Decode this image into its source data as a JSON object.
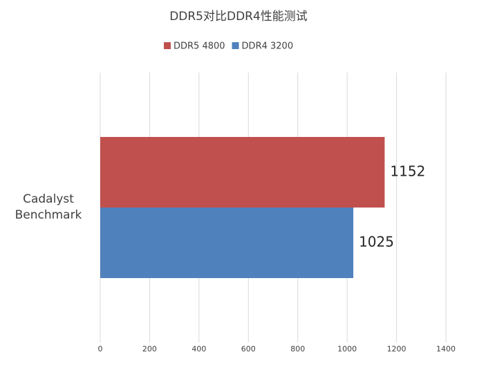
{
  "chart_data": {
    "type": "bar",
    "orientation": "horizontal",
    "title": "DDR5对比DDR4性能测试",
    "categories": [
      "Cadalyst Benchmark"
    ],
    "series": [
      {
        "name": "DDR5 4800",
        "color": "#c0504d",
        "values": [
          1152
        ]
      },
      {
        "name": "DDR4 3200",
        "color": "#4f81bd",
        "values": [
          1025
        ]
      }
    ],
    "xlim": [
      0,
      1400
    ],
    "xticks": [
      0,
      200,
      400,
      600,
      800,
      1000,
      1200,
      1400
    ],
    "grid": true,
    "legend": "top"
  }
}
